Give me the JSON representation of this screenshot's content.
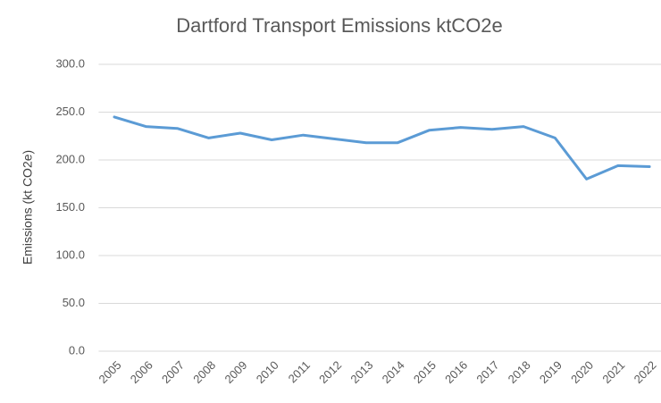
{
  "chart_data": {
    "type": "line",
    "title": "Dartford Transport Emissions ktCO2e",
    "y_label": "Emissions (kt CO2e)",
    "categories": [
      "2005",
      "2006",
      "2007",
      "2008",
      "2009",
      "2010",
      "2011",
      "2012",
      "2013",
      "2014",
      "2015",
      "2016",
      "2017",
      "2018",
      "2019",
      "2020",
      "2021",
      "2022"
    ],
    "series": [
      {
        "name": "Emissions",
        "color": "#5b9bd5",
        "values": [
          245,
          235,
          233,
          223,
          228,
          221,
          226,
          222,
          218,
          218,
          231,
          234,
          232,
          235,
          223,
          180,
          194,
          193
        ]
      }
    ],
    "ylim": [
      0,
      300
    ],
    "yticks": [
      {
        "value": 0,
        "label": "0.0"
      },
      {
        "value": 50,
        "label": "50.0"
      },
      {
        "value": 100,
        "label": "100.0"
      },
      {
        "value": 150,
        "label": "150.0"
      },
      {
        "value": 200,
        "label": "200.0"
      },
      {
        "value": 250,
        "label": "250.0"
      },
      {
        "value": 300,
        "label": "300.0"
      }
    ],
    "grid": true
  }
}
